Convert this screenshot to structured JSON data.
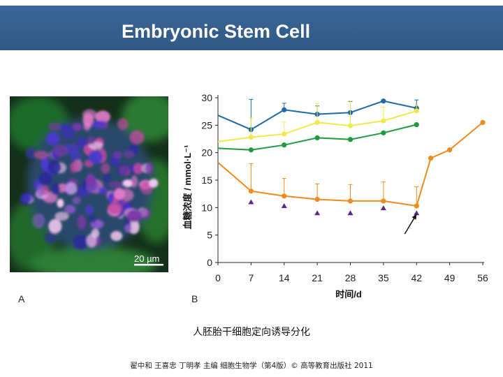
{
  "header": {
    "title": "Embryonic Stem Cell"
  },
  "panel_a": {
    "label": "A",
    "scale_bar": "20 µm"
  },
  "panel_b": {
    "label": "B"
  },
  "caption": "人胚胎干细胞定向诱导分化",
  "credit": "翟中和 王喜忠 丁明孝 主编 细胞生物学（第4版）© 高等教育出版社 2011",
  "colors": {
    "header": "#2f5886",
    "blue": "#1f6aa5",
    "yellow": "#f2e84a",
    "green": "#1f9a3c",
    "orange": "#ef8a1d",
    "purple": "#5a2a8a"
  },
  "chart_data": {
    "type": "line",
    "xlabel": "时间/d",
    "ylabel": "血糖浓度 / mmol·L⁻¹",
    "xticks": [
      0,
      7,
      14,
      21,
      28,
      35,
      42,
      49,
      56
    ],
    "yticks": [
      0,
      5,
      10,
      15,
      20,
      25,
      30
    ],
    "xlim": [
      0,
      56
    ],
    "ylim": [
      0,
      30
    ],
    "series": [
      {
        "color": "#1f6aa5",
        "x": [
          0,
          7,
          14,
          21,
          28,
          35,
          42
        ],
        "y": [
          26.8,
          24.2,
          27.8,
          27.0,
          27.3,
          29.4,
          28.1
        ],
        "err": [
          0,
          5.5,
          1.2,
          1.5,
          2.0,
          0,
          1.5
        ],
        "markers": [
          false,
          true,
          true,
          true,
          true,
          true,
          true
        ]
      },
      {
        "color": "#f2e84a",
        "x": [
          0,
          7,
          14,
          21,
          28,
          35,
          42
        ],
        "y": [
          22.0,
          22.8,
          23.4,
          25.5,
          24.9,
          25.8,
          27.6
        ],
        "err": [
          0,
          3.5,
          2.2,
          3.5,
          4.5,
          2.5,
          1.0
        ],
        "markers": [
          false,
          true,
          true,
          true,
          true,
          true,
          true
        ]
      },
      {
        "color": "#1f9a3c",
        "x": [
          0,
          7,
          14,
          21,
          28,
          35,
          42
        ],
        "y": [
          20.8,
          20.5,
          21.4,
          22.7,
          22.4,
          23.6,
          25.1
        ],
        "err": [
          0,
          0,
          0,
          0,
          0,
          0,
          0
        ],
        "markers": [
          false,
          true,
          true,
          true,
          true,
          true,
          true
        ]
      },
      {
        "color": "#ef8a1d",
        "x": [
          0,
          7,
          14,
          21,
          28,
          35,
          42,
          45,
          49,
          56
        ],
        "y": [
          18.2,
          13.0,
          12.1,
          11.5,
          11.2,
          11.2,
          10.3,
          19.0,
          20.5,
          25.5
        ],
        "err": [
          0,
          5.0,
          3.2,
          2.8,
          3.0,
          3.5,
          3.5,
          0,
          0,
          0
        ],
        "markers": [
          false,
          true,
          true,
          true,
          true,
          true,
          true,
          true,
          true,
          true
        ]
      }
    ],
    "triangles": {
      "color": "#5a2a8a",
      "x": [
        7,
        14,
        21,
        28,
        35,
        42
      ],
      "y": [
        11.0,
        10.3,
        9.0,
        9.0,
        9.9,
        9.0
      ]
    },
    "arrow": {
      "from": [
        39.5,
        5.2
      ],
      "to": [
        42.0,
        8.8
      ]
    }
  }
}
